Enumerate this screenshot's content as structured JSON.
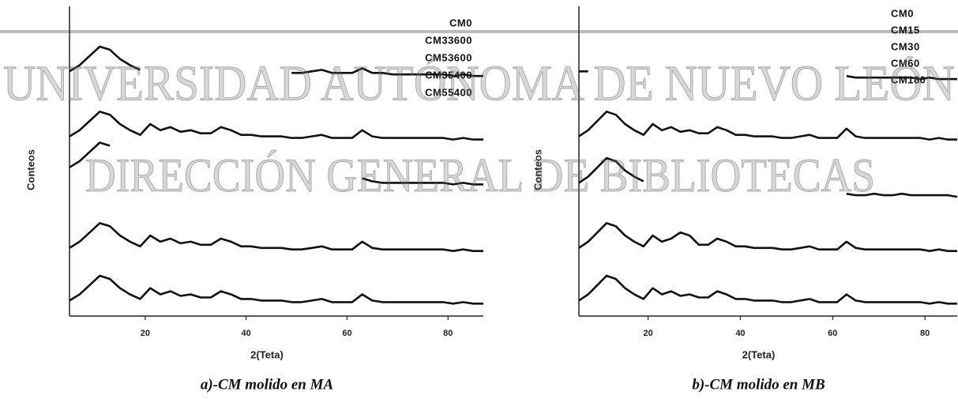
{
  "chart_data": [
    {
      "type": "line",
      "caption": "a)-CM molido en MA",
      "xlabel": "2(Teta)",
      "ylabel": "Conteos",
      "x": [
        5,
        7,
        9,
        11,
        13,
        15,
        17,
        19,
        21,
        23,
        25,
        27,
        29,
        31,
        33,
        35,
        37,
        39,
        41,
        43,
        45,
        47,
        49,
        51,
        53,
        55,
        57,
        59,
        61,
        63,
        65,
        67,
        69,
        71,
        73,
        75,
        77,
        79,
        81,
        83,
        85,
        87
      ],
      "xlim": [
        5,
        87
      ],
      "xticks": [
        20,
        40,
        60,
        80
      ],
      "ylim": [
        0,
        100
      ],
      "legend": "upper right",
      "series": [
        {
          "name": "CM0",
          "color": "#111111",
          "values": [
            79,
            81,
            84,
            87,
            86,
            83,
            81,
            79.5,
            null,
            null,
            null,
            null,
            null,
            null,
            null,
            null,
            null,
            null,
            null,
            null,
            null,
            null,
            78.5,
            78.5,
            79,
            79.5,
            78.5,
            78.5,
            78.5,
            80,
            78.5,
            78.5,
            78,
            78,
            78,
            78,
            78,
            78,
            77.5,
            78,
            77.5,
            77.5
          ]
        },
        {
          "name": "CM33600",
          "color": "#111111",
          "values": [
            58,
            60,
            63,
            66,
            65,
            62,
            60,
            58.5,
            62,
            60,
            61,
            59.5,
            60,
            59,
            59,
            61,
            60,
            58.5,
            58.5,
            58,
            58,
            58,
            57.5,
            57.5,
            58,
            58.5,
            57.5,
            57.5,
            57.5,
            60,
            58,
            57.5,
            57.5,
            57.5,
            57.5,
            57.5,
            57.5,
            57.5,
            57,
            57.5,
            57,
            57
          ]
        },
        {
          "name": "CM53600",
          "color": "#111111",
          "values": [
            48,
            50,
            53,
            56,
            55,
            null,
            null,
            null,
            null,
            null,
            null,
            null,
            null,
            null,
            null,
            null,
            null,
            null,
            null,
            null,
            null,
            null,
            null,
            null,
            null,
            null,
            null,
            null,
            null,
            44.5,
            43.5,
            43,
            43,
            43,
            43,
            43,
            43,
            43,
            42.5,
            43,
            42.5,
            42.5
          ]
        },
        {
          "name": "CM35400",
          "color": "#111111",
          "values": [
            22,
            24,
            27,
            30,
            29,
            26,
            24,
            22.5,
            26,
            24,
            25,
            23.5,
            24,
            23,
            23,
            25,
            24,
            22.5,
            22.5,
            22,
            22,
            22,
            21.5,
            21.5,
            22,
            22.5,
            21.5,
            21.5,
            21.5,
            24,
            22,
            21.5,
            21.5,
            21.5,
            21.5,
            21.5,
            21.5,
            21.5,
            21,
            21.5,
            21,
            21
          ]
        },
        {
          "name": "CM55400",
          "color": "#111111",
          "values": [
            5,
            7,
            10,
            13,
            12,
            9,
            7,
            5.5,
            9,
            7,
            8,
            6.5,
            7,
            6,
            6,
            8,
            7,
            5.5,
            5.5,
            5,
            5,
            5,
            4.5,
            4.5,
            5,
            5.5,
            4.5,
            4.5,
            4.5,
            7,
            5,
            4.5,
            4.5,
            4.5,
            4.5,
            4.5,
            4.5,
            4.5,
            4,
            4.5,
            4,
            4
          ]
        }
      ]
    },
    {
      "type": "line",
      "caption": "b)-CM molido en MB",
      "xlabel": "2(Teta)",
      "ylabel": "Conteos",
      "x": [
        5,
        7,
        9,
        11,
        13,
        15,
        17,
        19,
        21,
        23,
        25,
        27,
        29,
        31,
        33,
        35,
        37,
        39,
        41,
        43,
        45,
        47,
        49,
        51,
        53,
        55,
        57,
        59,
        61,
        63,
        65,
        67,
        69,
        71,
        73,
        75,
        77,
        79,
        81,
        83,
        85,
        87
      ],
      "xlim": [
        5,
        87
      ],
      "xticks": [
        20,
        40,
        60,
        80
      ],
      "ylim": [
        0,
        100
      ],
      "legend": "upper right",
      "series": [
        {
          "name": "CM0",
          "color": "#111111",
          "values": [
            79,
            79,
            null,
            null,
            null,
            null,
            null,
            null,
            null,
            null,
            null,
            null,
            null,
            null,
            null,
            null,
            null,
            null,
            null,
            null,
            null,
            null,
            null,
            null,
            null,
            null,
            null,
            null,
            null,
            77.5,
            77,
            77,
            77,
            77,
            77,
            77,
            77,
            76.5,
            77,
            76.5,
            76.5,
            76.5
          ]
        },
        {
          "name": "CM15",
          "color": "#111111",
          "values": [
            58,
            60,
            63,
            66,
            65,
            62,
            60,
            58.5,
            62,
            60,
            61,
            59.5,
            60,
            59,
            59,
            61,
            60,
            58.5,
            58.5,
            58,
            58,
            58,
            57.5,
            57.5,
            58,
            58.5,
            57.5,
            57.5,
            57.5,
            60.5,
            58,
            57.5,
            57.5,
            57.5,
            57.5,
            57.5,
            57.5,
            57.5,
            57,
            57.5,
            57,
            57
          ]
        },
        {
          "name": "CM30",
          "color": "#111111",
          "values": [
            43,
            45,
            48,
            51,
            50,
            47,
            45,
            43.5,
            null,
            null,
            null,
            null,
            null,
            null,
            null,
            null,
            null,
            null,
            null,
            null,
            null,
            null,
            null,
            null,
            null,
            null,
            null,
            null,
            null,
            39.5,
            39,
            39,
            39.5,
            39,
            39,
            39.5,
            39,
            39,
            39,
            39,
            39,
            38.5
          ]
        },
        {
          "name": "CM60",
          "color": "#111111",
          "values": [
            22,
            24,
            27,
            30,
            29,
            26,
            24,
            22.5,
            26,
            24,
            25,
            27,
            26,
            23,
            23,
            25,
            24,
            22.5,
            22.5,
            22,
            22,
            22,
            21.5,
            21.5,
            22,
            22.5,
            21.5,
            21.5,
            21.5,
            24,
            22,
            21.5,
            21.5,
            21.5,
            21.5,
            21.5,
            21.5,
            21.5,
            21,
            21.5,
            21,
            21
          ]
        },
        {
          "name": "CM180",
          "color": "#111111",
          "values": [
            5,
            7,
            10,
            13,
            12,
            9,
            7,
            5.5,
            9,
            7,
            8,
            6.5,
            7,
            6,
            6,
            8,
            7,
            5.5,
            5.5,
            5,
            5,
            5,
            4.5,
            4.5,
            5,
            5.5,
            4.5,
            4.5,
            4.5,
            7,
            5,
            4.5,
            4.5,
            4.5,
            4.5,
            4.5,
            4.5,
            4.5,
            4,
            4.5,
            4,
            4
          ]
        }
      ]
    }
  ],
  "watermark": [
    "UNIVERSIDAD AUTÓNOMA DE NUEVO LEÓN",
    "DIRECCIÓN GENERAL DE BIBLIOTECAS"
  ]
}
